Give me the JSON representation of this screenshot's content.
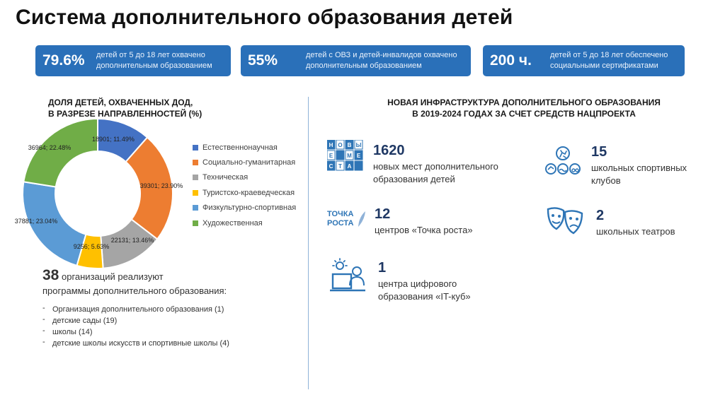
{
  "title": "Система дополнительного образования детей",
  "kpis": [
    {
      "value": "79.6%",
      "text": "детей от 5 до 18 лет охвачено дополнительным образованием"
    },
    {
      "value": "55%",
      "text": "детей с ОВЗ и детей-инвалидов охвачено дополнительным образованием"
    },
    {
      "value": "200 ч.",
      "text": "детей от 5 до 18 лет обеспечено социальными сертификатами"
    }
  ],
  "left_section": {
    "heading_line1": "ДОЛЯ ДЕТЕЙ, ОХВАЧЕННЫХ ДОД,",
    "heading_line2": "В РАЗРЕЗЕ НАПРАВЛЕННОСТЕЙ (%)"
  },
  "chart_data": {
    "type": "pie",
    "style": "donut",
    "title": "ДОЛЯ ДЕТЕЙ, ОХВАЧЕННЫХ ДОД, В РАЗРЕЗЕ НАПРАВЛЕННОСТЕЙ (%)",
    "categories": [
      "Естественнонаучная",
      "Социально-гуманитарная",
      "Техническая",
      "Туристско-краеведческая",
      "Физкультурно-спортивная",
      "Художественная"
    ],
    "values": [
      18901,
      39301,
      22131,
      9256,
      37881,
      36964
    ],
    "percents": [
      11.49,
      23.9,
      13.46,
      5.63,
      23.04,
      22.48
    ],
    "data_labels": [
      "18901; 11.49%",
      "39301; 23.90%",
      "22131; 13.46%",
      "9256; 5.63%",
      "37881; 23.04%",
      "36964; 22.48%"
    ],
    "colors": [
      "#4472c4",
      "#ed7d31",
      "#a5a5a5",
      "#ffc000",
      "#5b9bd5",
      "#70ad47"
    ],
    "legend_position": "right"
  },
  "orgs": {
    "count": "38",
    "line1": "организаций реализуют",
    "line2": "программы дополнительного образования:",
    "dash": "-",
    "items": [
      "Организация дополнительного образования (1)",
      "детские сады (19)",
      "школы (14)",
      "детские школы искусств и спортивные школы (4)"
    ]
  },
  "right_section": {
    "heading_line1": "НОВАЯ ИНФРАСТРУКТУРА ДОПОЛНИТЕЛЬНОГО ОБРАЗОВАНИЯ",
    "heading_line2": "В 2019-2024 ГОДАХ ЗА СЧЕТ СРЕДСТВ НАЦПРОЕКТА",
    "stats": [
      {
        "number": "1620",
        "line1": "новых мест дополнительного",
        "line2": "образования детей",
        "icon": "new-places-logo-icon"
      },
      {
        "number": "15",
        "line1": "школьных спортивных",
        "line2": "клубов",
        "icon": "sports-icon"
      },
      {
        "number": "12",
        "line1": "центров «Точка роста»",
        "line2": "",
        "icon": "tochka-rosta-logo"
      },
      {
        "number": "2",
        "line1": "школьных театров",
        "line2": "",
        "icon": "theater-masks-icon"
      },
      {
        "number": "1",
        "line1": "центра цифрового",
        "line2": "образования «IT-куб»",
        "icon": "digital-center-icon"
      }
    ],
    "logo_text": {
      "line1": "ТОЧКА",
      "line2": "РОСТА",
      "new_places_letters": [
        "Н",
        "О",
        "В",
        "Ы",
        "Е",
        "М",
        "Е",
        "С",
        "Т",
        "А"
      ]
    }
  },
  "colors": {
    "accent": "#2a70b9",
    "icon_blue": "#2e75b6",
    "dark_number": "#1f3864"
  }
}
